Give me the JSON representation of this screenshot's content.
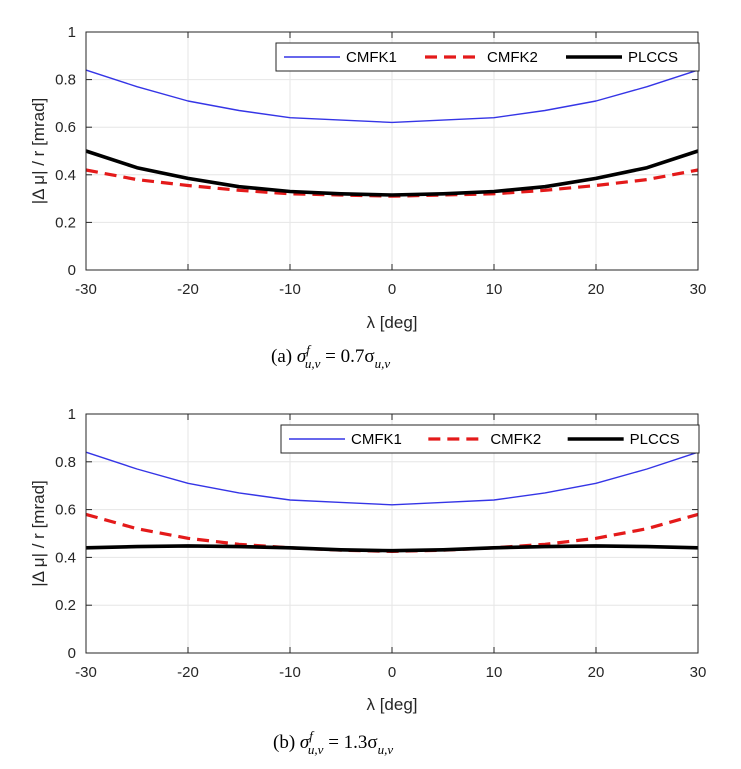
{
  "colors": {
    "CMFK1": "#3535e6",
    "CMFK2": "#e41a1a",
    "PLCCS": "#000000",
    "grid": "#e6e6e6",
    "axis": "#262626"
  },
  "chart_data": [
    {
      "type": "line",
      "panel_label": "(a)",
      "caption_math": {
        "lhs_symbol": "σ",
        "lhs_sup": "f",
        "lhs_sub": "u,v",
        "rhs": "= 0.7σ",
        "rhs_sub": "u,v"
      },
      "xlabel": "λ [deg]",
      "ylabel": "|Δ μ| / r [mrad]",
      "xlim": [
        -30,
        30
      ],
      "ylim": [
        0,
        1
      ],
      "xticks": [
        -30,
        -20,
        -10,
        0,
        10,
        20,
        30
      ],
      "yticks": [
        0,
        0.2,
        0.4,
        0.6,
        0.8,
        1
      ],
      "grid": true,
      "legend_position": "top-right",
      "x": [
        -30,
        -25,
        -20,
        -15,
        -10,
        -5,
        0,
        5,
        10,
        15,
        20,
        25,
        30
      ],
      "series": [
        {
          "name": "CMFK1",
          "style": "thin-solid",
          "values": [
            0.84,
            0.77,
            0.71,
            0.67,
            0.64,
            0.63,
            0.62,
            0.63,
            0.64,
            0.67,
            0.71,
            0.77,
            0.84
          ]
        },
        {
          "name": "CMFK2",
          "style": "dashed",
          "values": [
            0.42,
            0.38,
            0.355,
            0.335,
            0.32,
            0.315,
            0.31,
            0.315,
            0.32,
            0.335,
            0.355,
            0.38,
            0.42
          ]
        },
        {
          "name": "PLCCS",
          "style": "thick-solid",
          "values": [
            0.5,
            0.43,
            0.385,
            0.35,
            0.33,
            0.32,
            0.315,
            0.32,
            0.33,
            0.35,
            0.385,
            0.43,
            0.5
          ]
        }
      ]
    },
    {
      "type": "line",
      "panel_label": "(b)",
      "caption_math": {
        "lhs_symbol": "σ",
        "lhs_sup": "f",
        "lhs_sub": "u,v",
        "rhs": "= 1.3σ",
        "rhs_sub": "u,v"
      },
      "xlabel": "λ [deg]",
      "ylabel": "|Δ μ| / r [mrad]",
      "xlim": [
        -30,
        30
      ],
      "ylim": [
        0,
        1
      ],
      "xticks": [
        -30,
        -20,
        -10,
        0,
        10,
        20,
        30
      ],
      "yticks": [
        0,
        0.2,
        0.4,
        0.6,
        0.8,
        1
      ],
      "grid": true,
      "legend_position": "top-right",
      "x": [
        -30,
        -25,
        -20,
        -15,
        -10,
        -5,
        0,
        5,
        10,
        15,
        20,
        25,
        30
      ],
      "series": [
        {
          "name": "CMFK1",
          "style": "thin-solid",
          "values": [
            0.84,
            0.77,
            0.71,
            0.67,
            0.64,
            0.63,
            0.62,
            0.63,
            0.64,
            0.67,
            0.71,
            0.77,
            0.84
          ]
        },
        {
          "name": "CMFK2",
          "style": "dashed",
          "values": [
            0.58,
            0.52,
            0.48,
            0.455,
            0.44,
            0.43,
            0.425,
            0.43,
            0.44,
            0.455,
            0.48,
            0.52,
            0.58
          ]
        },
        {
          "name": "PLCCS",
          "style": "thick-solid",
          "values": [
            0.44,
            0.445,
            0.448,
            0.445,
            0.44,
            0.432,
            0.428,
            0.432,
            0.44,
            0.445,
            0.448,
            0.445,
            0.44
          ]
        }
      ]
    }
  ]
}
